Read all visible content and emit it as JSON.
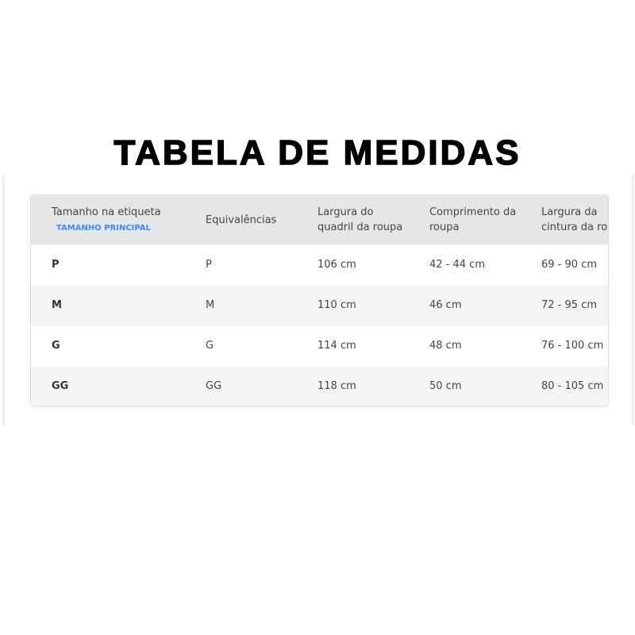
{
  "title": "TABELA DE MEDIDAS",
  "table": {
    "headers": [
      [
        "Tamanho na etiqueta"
      ],
      [
        "Equivalências"
      ],
      [
        "Largura do",
        "quadril da roupa"
      ],
      [
        "Comprimento da",
        "roupa"
      ],
      [
        "Largura da",
        "cintura da ro"
      ]
    ],
    "badge": "TAMANHO PRINCIPAL",
    "rows": [
      [
        "P",
        "P",
        "106 cm",
        "42 - 44 cm",
        "69 - 90 cm"
      ],
      [
        "M",
        "M",
        "110 cm",
        "46 cm",
        "72 - 95 cm"
      ],
      [
        "G",
        "G",
        "114 cm",
        "48 cm",
        "76 - 100 cm"
      ],
      [
        "GG",
        "GG",
        "118 cm",
        "50 cm",
        "80 - 105 cm"
      ]
    ]
  }
}
